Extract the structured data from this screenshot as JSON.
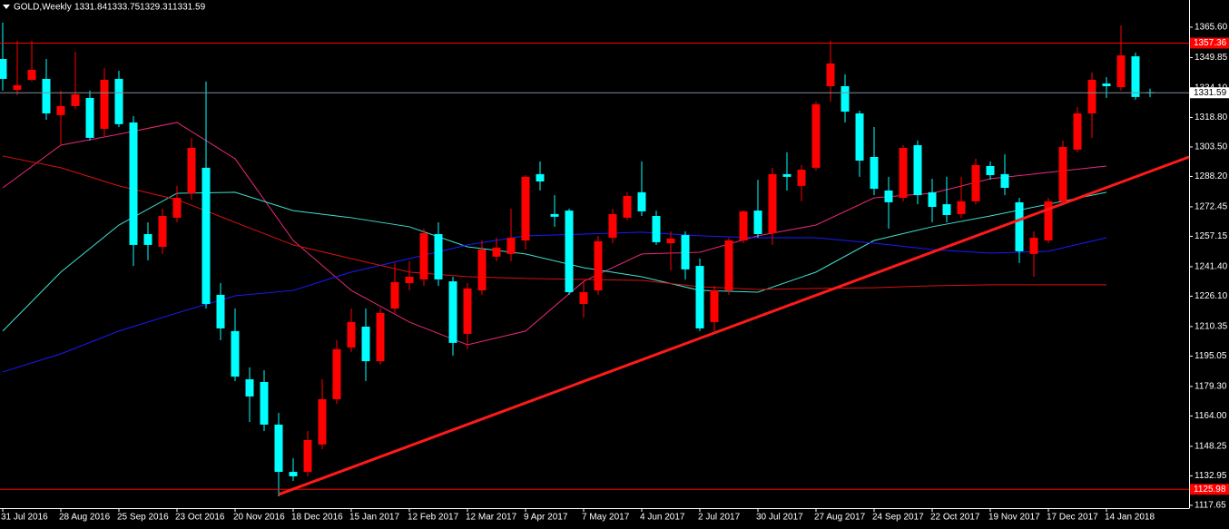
{
  "chart_data": {
    "type": "candlestick",
    "title": "GOLD,Weekly",
    "categories": [
      "31 Jul 2016",
      null,
      null,
      null,
      "28 Aug 2016",
      null,
      null,
      null,
      "25 Sep 2016",
      null,
      null,
      null,
      "23 Oct 2016",
      null,
      null,
      null,
      "20 Nov 2016",
      null,
      null,
      null,
      "18 Dec 2016",
      null,
      null,
      null,
      "15 Jan 2017",
      null,
      null,
      null,
      "12 Feb 2017",
      null,
      null,
      null,
      "12 Mar 2017",
      null,
      null,
      null,
      "9 Apr 2017",
      null,
      null,
      null,
      "7 May 2017",
      null,
      null,
      null,
      "4 Jun 2017",
      null,
      null,
      null,
      "2 Jul 2017",
      null,
      null,
      null,
      "30 Jul 2017",
      null,
      null,
      null,
      "27 Aug 2017",
      null,
      null,
      null,
      "24 Sep 2017",
      null,
      null,
      null,
      "22 Oct 2017",
      null,
      null,
      null,
      "19 Nov 2017",
      null,
      null,
      null,
      "17 Dec 2017",
      null,
      null,
      null,
      "14 Jan 2018",
      null,
      null,
      null
    ],
    "open": [
      1349.1,
      1333.1,
      1338.3,
      1338.8,
      1320.0,
      1324.7,
      1328.9,
      1312.9,
      1338.8,
      1316.2,
      1258.3,
      1251.7,
      1266.8,
      1279.5,
      1292.7,
      1226.8,
      1208.0,
      1183.0,
      1181.6,
      1159.5,
      1135.0,
      1135.0,
      1149.2,
      1172.7,
      1199.5,
      1210.3,
      1192.4,
      1219.7,
      1232.9,
      1234.8,
      1258.3,
      1233.8,
      1206.6,
      1229.1,
      1246.6,
      1248.0,
      1255.0,
      1289.4,
      1268.7,
      1270.5,
      1222.1,
      1229.1,
      1256.4,
      1266.8,
      1280.0,
      1267.7,
      1253.6,
      1257.8,
      1241.8,
      1212.7,
      1229.1,
      1255.0,
      1270.5,
      1258.8,
      1289.4,
      1283.3,
      1292.7,
      1335.0,
      1335.0,
      1320.9,
      1298.3,
      1280.9,
      1277.1,
      1304.4,
      1280.0,
      1273.8,
      1268.7,
      1275.3,
      1293.6,
      1289.4,
      1274.8,
      1248.0,
      1255.0,
      1275.3,
      1302.1,
      1320.9,
      1336.4,
      1334.5,
      1350.5,
      1331.84
    ],
    "high": [
      1368.0,
      1358.5,
      1358.5,
      1349.1,
      1332.7,
      1352.9,
      1332.7,
      1344.4,
      1343.0,
      1319.5,
      1264.4,
      1271.5,
      1283.3,
      1308.2,
      1337.4,
      1232.9,
      1219.7,
      1189.2,
      1187.7,
      1165.6,
      1142.1,
      1156.2,
      1183.0,
      1203.3,
      1219.7,
      1219.7,
      1219.7,
      1243.3,
      1244.2,
      1261.1,
      1264.4,
      1236.2,
      1232.9,
      1255.0,
      1256.4,
      1271.5,
      1288.9,
      1296.0,
      1278.5,
      1271.5,
      1233.8,
      1257.4,
      1271.5,
      1280.0,
      1296.0,
      1270.5,
      1259.7,
      1259.7,
      1245.6,
      1231.5,
      1256.4,
      1270.5,
      1286.5,
      1292.7,
      1300.7,
      1294.1,
      1327.0,
      1358.5,
      1341.1,
      1322.3,
      1313.8,
      1288.0,
      1304.4,
      1306.8,
      1287.0,
      1288.0,
      1288.0,
      1297.4,
      1296.0,
      1299.7,
      1277.1,
      1259.7,
      1277.1,
      1306.8,
      1324.2,
      1342.1,
      1339.7,
      1366.5,
      1352.4,
      1333.75
    ],
    "low": [
      1332.7,
      1330.3,
      1337.4,
      1317.6,
      1304.4,
      1323.3,
      1306.8,
      1309.1,
      1313.8,
      1241.8,
      1244.7,
      1248.0,
      1264.4,
      1276.2,
      1219.7,
      1203.3,
      1182.1,
      1160.9,
      1156.2,
      1122.3,
      1130.3,
      1132.7,
      1146.8,
      1170.3,
      1197.2,
      1182.1,
      1190.6,
      1217.4,
      1229.1,
      1231.5,
      1231.5,
      1195.3,
      1198.6,
      1226.8,
      1244.2,
      1244.2,
      1250.3,
      1280.9,
      1262.1,
      1226.8,
      1215.0,
      1226.8,
      1253.6,
      1265.4,
      1267.7,
      1252.7,
      1239.5,
      1234.8,
      1208.0,
      1206.6,
      1226.8,
      1253.6,
      1256.4,
      1252.7,
      1280.9,
      1275.3,
      1291.3,
      1327.0,
      1316.2,
      1288.0,
      1278.5,
      1261.1,
      1275.3,
      1273.8,
      1264.4,
      1264.4,
      1266.8,
      1273.8,
      1286.5,
      1278.5,
      1243.3,
      1236.2,
      1253.6,
      1273.4,
      1300.7,
      1308.2,
      1328.9,
      1332.7,
      1328.0,
      1329.31
    ],
    "close": [
      1338.8,
      1335.5,
      1343.5,
      1320.9,
      1324.7,
      1330.8,
      1308.2,
      1338.3,
      1315.3,
      1252.7,
      1252.7,
      1267.7,
      1277.1,
      1303.0,
      1222.1,
      1209.4,
      1184.4,
      1174.1,
      1159.5,
      1135.0,
      1132.7,
      1151.5,
      1172.7,
      1198.6,
      1212.7,
      1192.4,
      1217.4,
      1233.4,
      1236.2,
      1258.8,
      1234.8,
      1201.9,
      1230.1,
      1250.3,
      1251.3,
      1256.4,
      1288.0,
      1285.6,
      1267.3,
      1228.2,
      1228.2,
      1254.6,
      1268.7,
      1278.1,
      1270.1,
      1254.1,
      1256.0,
      1240.0,
      1209.4,
      1229.1,
      1255.0,
      1270.1,
      1258.3,
      1289.4,
      1288.0,
      1291.7,
      1325.6,
      1346.8,
      1321.8,
      1296.4,
      1281.8,
      1274.8,
      1303.0,
      1278.5,
      1272.4,
      1268.2,
      1275.3,
      1294.1,
      1288.9,
      1282.3,
      1249.4,
      1256.4,
      1275.3,
      1303.5,
      1320.9,
      1338.3,
      1335.0,
      1351.0,
      1329.4,
      1331.59
    ],
    "up_color": "#ff0000",
    "down_color": "#00ffff",
    "ylim": [
      1116.2,
      1379.7
    ],
    "yticks": [
      {
        "value": 1117.65,
        "label": "1117.65"
      },
      {
        "value": 1132.95,
        "label": "1132.95"
      },
      {
        "value": 1148.25,
        "label": "1148.25"
      },
      {
        "value": 1164.0,
        "label": "1164.00"
      },
      {
        "value": 1179.3,
        "label": "1179.30"
      },
      {
        "value": 1195.05,
        "label": "1195.05"
      },
      {
        "value": 1210.35,
        "label": "1210.35"
      },
      {
        "value": 1226.1,
        "label": "1226.10"
      },
      {
        "value": 1241.4,
        "label": "1241.40"
      },
      {
        "value": 1257.15,
        "label": "1257.15"
      },
      {
        "value": 1272.45,
        "label": "1272.45"
      },
      {
        "value": 1288.2,
        "label": "1288.20"
      },
      {
        "value": 1303.5,
        "label": "1303.50"
      },
      {
        "value": 1318.8,
        "label": "1318.80"
      },
      {
        "value": 1334.1,
        "label": "1334.10"
      },
      {
        "value": 1349.85,
        "label": "1349.85"
      },
      {
        "value": 1365.6,
        "label": "1365.60"
      }
    ],
    "levels": [
      {
        "value": 1357.36,
        "color": "#ff0000"
      },
      {
        "value": 1125.98,
        "color": "#ff0000"
      }
    ],
    "current_line_color": "#7f8c99",
    "indicator_dates": [
      "31 Jul 2016",
      "28 Aug 2016",
      "25 Sep 2016",
      "23 Oct 2016",
      "20 Nov 2016",
      "18 Dec 2016",
      "15 Jan 2017",
      "12 Feb 2017",
      "12 Mar 2017",
      "9 Apr 2017",
      "7 May 2017",
      "4 Jun 2017",
      "2 Jul 2017",
      "30 Jul 2017",
      "27 Aug 2017",
      "24 Sep 2017",
      "22 Oct 2017",
      "19 Nov 2017",
      "17 Dec 2017",
      "14 Jan 2018"
    ],
    "indicators": [
      {
        "color": "#e8287a",
        "values": [
          1282.3,
          1304.4,
          1310.1,
          1316.2,
          1297.4,
          1255.0,
          1229.1,
          1212.7,
          1200.9,
          1208.0,
          1233.8,
          1248.0,
          1248.9,
          1257.4,
          1263.0,
          1277.1,
          1279.5,
          1287.0,
          1290.3,
          1293.6
        ]
      },
      {
        "color": "#40e0d0",
        "values": [
          1208.0,
          1238.6,
          1263.0,
          1279.5,
          1280.0,
          1270.5,
          1266.8,
          1262.1,
          1251.7,
          1248.0,
          1240.9,
          1236.2,
          1229.1,
          1228.2,
          1238.6,
          1255.0,
          1262.1,
          1267.7,
          1273.8,
          1280.0
        ]
      },
      {
        "color": "#1a1aff",
        "values": [
          1186.8,
          1196.2,
          1208.0,
          1217.4,
          1226.3,
          1229.1,
          1238.6,
          1245.6,
          1252.7,
          1257.4,
          1258.3,
          1259.3,
          1257.4,
          1256.4,
          1256.4,
          1253.6,
          1250.3,
          1248.4,
          1249.4,
          1256.4
        ]
      },
      {
        "color": "#d81010",
        "values": [
          1298.8,
          1292.7,
          1283.3,
          1276.2,
          1264.4,
          1252.7,
          1245.6,
          1238.6,
          1236.2,
          1235.3,
          1234.8,
          1234.3,
          1231.0,
          1229.6,
          1230.1,
          1230.5,
          1231.5,
          1232.0,
          1232.0,
          1232.0
        ]
      }
    ],
    "trendline": {
      "color": "#ff1a1a",
      "x": [
        19,
        79
      ],
      "values": [
        1123.3,
        1290.8
      ]
    }
  }
}
